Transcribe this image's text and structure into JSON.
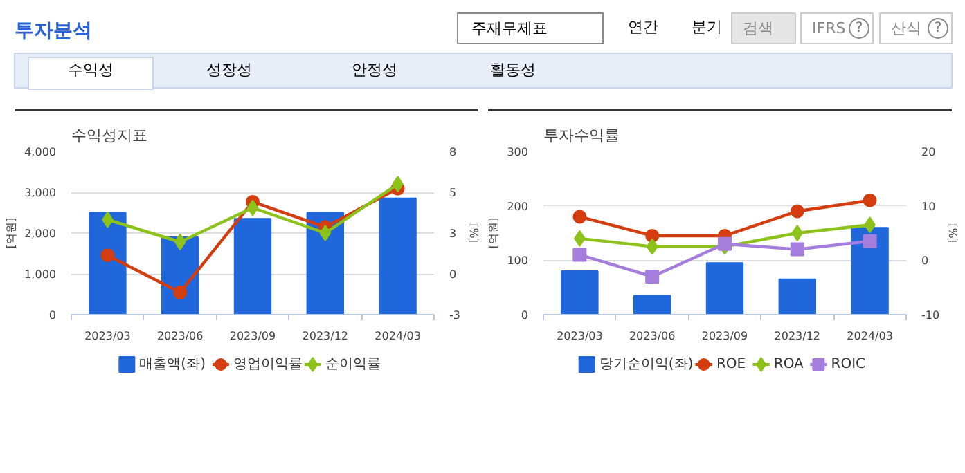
{
  "chart_data": [
    {
      "type": "other",
      "title": "투자분석",
      "annotations": [
        "주재무제표",
        "연간",
        "분기",
        "검색",
        "IFRS",
        "?",
        "산식",
        "?",
        "수익성",
        "성장성",
        "안정성",
        "활동성"
      ]
    },
    {
      "type": "bar",
      "title": "수익성지표",
      "ylabel": "[억원]",
      "y2label": "[%]",
      "categories": [
        "2023/03",
        "2023/06",
        "2023/09",
        "2023/12",
        "2024/03"
      ],
      "ylim": [
        0,
        4000
      ],
      "yticks": [
        0,
        {
          "value": 1000,
          "label": "1,000"
        },
        {
          "value": 2000,
          "label": "2,000"
        },
        {
          "value": 3000,
          "label": "3,000"
        },
        {
          "value": 4000,
          "label": "4,000"
        }
      ],
      "y2lim": [
        -3,
        8
      ],
      "y2ticks": [
        -3,
        {
          "value": -0.25,
          "label": "0"
        },
        {
          "value": 2.5,
          "label": "3"
        },
        {
          "value": 5.25,
          "label": "5"
        },
        8
      ],
      "grid": "y",
      "legend": "bottom",
      "series": [
        {
          "name": "매출액(좌)",
          "type": "bar",
          "color": "#2167dc",
          "values": [
            2500,
            1900,
            2350,
            2500,
            2850
          ]
        },
        {
          "name": "영업이익률",
          "type": "line",
          "axis": "y2",
          "marker": "circle",
          "color": "#d43d0f",
          "values": [
            1.0,
            -1.5,
            4.6,
            2.9,
            5.5
          ]
        },
        {
          "name": "순이익률",
          "type": "line",
          "axis": "y2",
          "marker": "diamond",
          "color": "#8cc21a",
          "values": [
            3.4,
            1.9,
            4.2,
            2.5,
            5.8
          ]
        }
      ]
    },
    {
      "type": "bar",
      "title": "투자수익률",
      "ylabel": "[억원]",
      "y2label": "[%]",
      "categories": [
        "2023/03",
        "2023/06",
        "2023/09",
        "2023/12",
        "2024/03"
      ],
      "ylim": [
        0,
        300
      ],
      "yticks": [
        0,
        100,
        200,
        300
      ],
      "y2lim": [
        -10,
        20
      ],
      "y2ticks": [
        -10,
        0,
        10,
        20
      ],
      "grid": "y",
      "legend": "bottom",
      "series": [
        {
          "name": "당기순이익(좌)",
          "type": "bar",
          "color": "#2167dc",
          "values": [
            80,
            35,
            95,
            65,
            160
          ]
        },
        {
          "name": "ROE",
          "type": "line",
          "axis": "y2",
          "marker": "circle",
          "color": "#d43d0f",
          "values": [
            8,
            4.5,
            4.5,
            9,
            11
          ]
        },
        {
          "name": "ROA",
          "type": "line",
          "axis": "y2",
          "marker": "diamond",
          "color": "#8cc21a",
          "values": [
            4,
            2.5,
            2.5,
            5,
            6.5
          ]
        },
        {
          "name": "ROIC",
          "type": "line",
          "axis": "y2",
          "marker": "square",
          "color": "#a57ddc",
          "values": [
            1,
            -3,
            3,
            2,
            3.5
          ]
        }
      ]
    }
  ]
}
